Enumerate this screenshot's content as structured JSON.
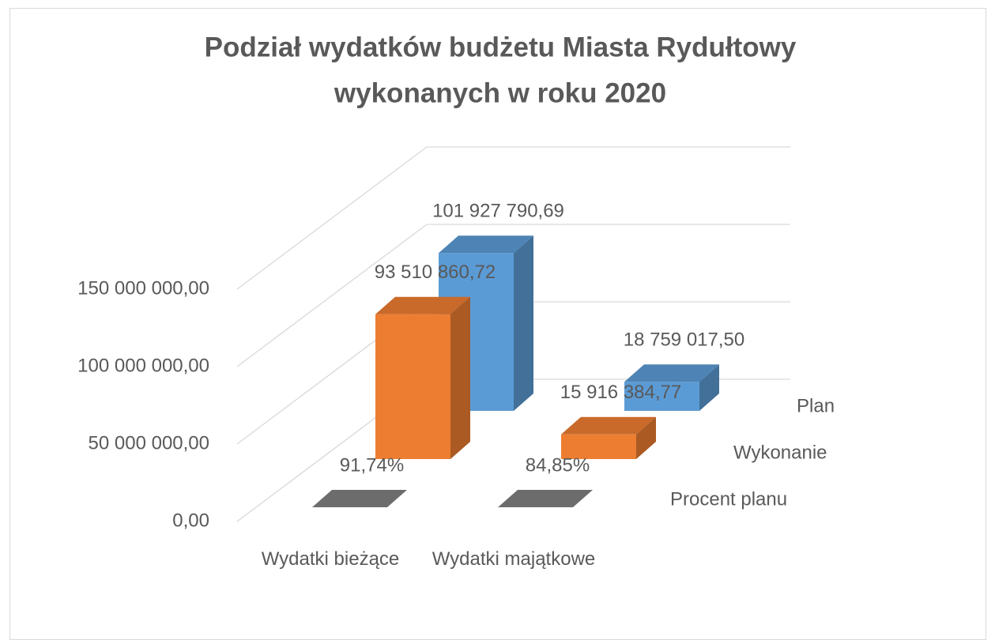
{
  "chart_data": {
    "type": "bar3d",
    "title": [
      "Podział wydatków budżetu Miasta Rydułtowy",
      "wykonanych w roku 2020"
    ],
    "categories": [
      "Wydatki bieżące",
      "Wydatki majątkowe"
    ],
    "series": [
      {
        "name": "Plan",
        "color": "#5b9bd5",
        "values": [
          101927790.69,
          18759017.5
        ],
        "value_labels": [
          "101 927 790,69",
          "18 759 017,50"
        ]
      },
      {
        "name": "Wykonanie",
        "color": "#ed7d31",
        "values": [
          93510860.72,
          15916384.77
        ],
        "value_labels": [
          "93 510 860,72",
          "15 916 384,77"
        ]
      },
      {
        "name": "Procent planu",
        "color": "#7f7f7f",
        "values": [
          91.74,
          84.85
        ],
        "value_labels": [
          "91,74%",
          "84,85%"
        ]
      }
    ],
    "ylim": [
      0,
      150000000
    ],
    "yticks": [
      {
        "value": 0,
        "label": "0,00"
      },
      {
        "value": 50000000,
        "label": "50 000 000,00"
      },
      {
        "value": 100000000,
        "label": "100 000 000,00"
      },
      {
        "value": 150000000,
        "label": "150 000 000,00"
      }
    ],
    "grid": true
  }
}
